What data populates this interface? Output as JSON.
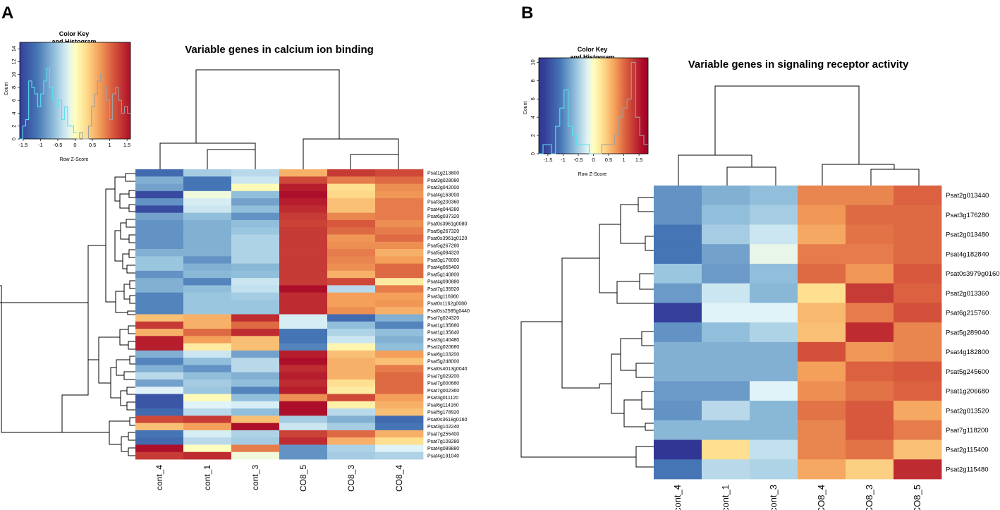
{
  "panels": [
    {
      "letter": "A",
      "title": "Variable genes in calcium ion binding",
      "color_key": {
        "title_line1": "Color Key",
        "title_line2": "and Histogram",
        "xlabel": "Row Z-Score",
        "ylabel": "Count",
        "x_ticks": [
          "-1.5",
          "-1",
          "-0.5",
          "0",
          "0.5",
          "1",
          "1.5"
        ],
        "y_ticks": [
          "0",
          "2",
          "4",
          "6",
          "8",
          "10",
          "12",
          "14"
        ],
        "xlim": [
          -1.6,
          1.6
        ],
        "ylim": [
          0,
          15
        ],
        "histogram": [
          0,
          2,
          3,
          9,
          8,
          7,
          5,
          7,
          9,
          11,
          8,
          6,
          5,
          6,
          3,
          5,
          2,
          2,
          1,
          0,
          1,
          0,
          0,
          2,
          5,
          7,
          9,
          10,
          8,
          6,
          3,
          7,
          8,
          6,
          4,
          5,
          4
        ]
      }
    },
    {
      "letter": "B",
      "title": "Variable genes in signaling receptor activity",
      "color_key": {
        "title_line1": "Color Key",
        "title_line2": "and Histogram",
        "xlabel": "Row Z-Score",
        "ylabel": "Count",
        "x_ticks": [
          "-1.5",
          "-1",
          "-0.5",
          "0",
          "0.5",
          "1",
          "1.5"
        ],
        "y_ticks": [
          "0",
          "2",
          "4",
          "6",
          "8",
          "10"
        ],
        "xlim": [
          -1.8,
          1.8
        ],
        "ylim": [
          0,
          10.5
        ],
        "histogram": [
          0,
          1,
          1,
          0,
          3,
          5,
          7,
          3,
          2,
          1,
          1,
          1,
          0,
          0,
          0,
          1,
          1,
          1,
          2,
          4,
          5,
          6,
          10,
          4,
          2,
          1
        ]
      }
    }
  ],
  "chart_data": [
    {
      "type": "heatmap",
      "title": "Variable genes in calcium ion binding",
      "scale": "Row Z-Score",
      "columns": [
        "cont_4",
        "cont_1",
        "cont_3",
        "CO8_5",
        "CO8_3",
        "CO8_4"
      ],
      "rows": [
        "Psat1g213800",
        "Psat3g028080",
        "Psat2g042000",
        "Psat4g163000",
        "Psat3g200360",
        "Psat4g044280",
        "Psat6g037320",
        "Psat0s3961g0080",
        "Psat5g267320",
        "Psat0s3961g0120",
        "Psat5g267280",
        "Psat5g084320",
        "Psat3g176000",
        "Psat4g065400",
        "Psat5g140800",
        "Psat4g090880",
        "Psat7g135920",
        "Psat3g116960",
        "Psat0s1162g0080",
        "Psat0ss2585g0440",
        "Psat7g024320",
        "Psat1g135680",
        "Psat1g135640",
        "Psat3g140480",
        "Psat2g020680",
        "Psat6g103200",
        "Psat5g248000",
        "Psat0s4013g0040",
        "Psat7g029200",
        "Psat7g000680",
        "Psat7g002360",
        "Psat3g011120",
        "Psat6g114160",
        "Psat5g178920",
        "Psat0s3618g0160",
        "Psat3g102240",
        "Psat7g255400",
        "Psat7g109280",
        "Psat4g089880",
        "Psat4g191040"
      ],
      "values": [
        [
          -1.2,
          -0.5,
          -0.4,
          0.6,
          1.3,
          1.2
        ],
        [
          -0.7,
          -1.1,
          -0.3,
          1.2,
          0.9,
          1.0
        ],
        [
          -0.8,
          -1.1,
          0.05,
          1.5,
          0.3,
          0.8
        ],
        [
          -1.5,
          -0.1,
          -0.6,
          1.6,
          0.35,
          0.75
        ],
        [
          -0.9,
          -0.25,
          -0.8,
          1.5,
          0.5,
          0.9
        ],
        [
          -1.5,
          -0.3,
          -0.6,
          1.4,
          0.5,
          0.9
        ],
        [
          -0.8,
          -0.6,
          -0.9,
          1.3,
          0.85,
          0.9
        ],
        [
          -0.9,
          -0.7,
          -0.6,
          1.25,
          1.1,
          0.8
        ],
        [
          -0.9,
          -0.7,
          -0.55,
          1.3,
          1.0,
          0.9
        ],
        [
          -0.9,
          -0.7,
          -0.45,
          1.3,
          0.75,
          1.0
        ],
        [
          -0.9,
          -0.7,
          -0.45,
          1.3,
          0.8,
          0.8
        ],
        [
          -0.7,
          -0.7,
          -0.45,
          1.3,
          0.9,
          0.6
        ],
        [
          -0.55,
          -0.9,
          -0.45,
          1.3,
          0.85,
          0.7
        ],
        [
          -0.55,
          -0.7,
          -0.65,
          1.3,
          0.8,
          1.0
        ],
        [
          -0.9,
          -0.65,
          -0.6,
          1.3,
          0.6,
          1.0
        ],
        [
          -0.7,
          -1.0,
          -0.3,
          1.3,
          1.2,
          0.2
        ],
        [
          -0.7,
          -0.6,
          -0.35,
          1.6,
          -0.4,
          0.9
        ],
        [
          -1.0,
          -0.55,
          -0.5,
          1.4,
          0.7,
          0.7
        ],
        [
          -1.0,
          -0.55,
          -0.55,
          1.4,
          0.7,
          0.75
        ],
        [
          -1.0,
          -0.55,
          -0.55,
          1.4,
          0.8,
          0.6
        ],
        [
          0.5,
          0.6,
          1.4,
          -0.25,
          -1.2,
          -0.7
        ],
        [
          1.3,
          0.6,
          1.0,
          -0.25,
          -0.6,
          -1.0
        ],
        [
          0.6,
          1.0,
          1.4,
          -1.1,
          -0.45,
          -0.6
        ],
        [
          1.5,
          0.7,
          0.5,
          -1.1,
          -0.3,
          -0.7
        ],
        [
          1.5,
          0.2,
          0.5,
          -1.0,
          0.1,
          -0.6
        ],
        [
          -0.7,
          -0.3,
          -0.8,
          1.5,
          0.5,
          0.7
        ],
        [
          -1.0,
          -0.6,
          -0.4,
          1.6,
          0.6,
          0.5
        ],
        [
          -0.7,
          -0.9,
          -0.4,
          1.4,
          0.6,
          0.9
        ],
        [
          -0.4,
          -0.6,
          -0.7,
          1.5,
          0.6,
          1.0
        ],
        [
          -0.8,
          -0.5,
          -0.6,
          1.4,
          0.3,
          1.0
        ],
        [
          -0.2,
          -0.55,
          -1.0,
          1.5,
          0.2,
          1.0
        ],
        [
          -1.4,
          0.05,
          -0.6,
          0.8,
          1.2,
          0.7
        ],
        [
          -1.4,
          -0.2,
          -0.25,
          1.6,
          0.15,
          0.6
        ],
        [
          -1.2,
          -0.4,
          -0.6,
          1.6,
          -0.4,
          0.5
        ],
        [
          1.2,
          1.3,
          0.5,
          -0.5,
          -0.7,
          -1.2
        ],
        [
          0.5,
          0.7,
          1.6,
          -0.3,
          -0.5,
          -1.1
        ],
        [
          -1.1,
          -0.25,
          -0.45,
          1.25,
          1.0,
          0.6
        ],
        [
          -1.2,
          -0.4,
          -0.5,
          1.4,
          0.6,
          0.3
        ],
        [
          1.6,
          0.0,
          0.9,
          -0.9,
          -0.45,
          -0.2
        ],
        [
          1.3,
          1.4,
          -0.1,
          -0.9,
          -0.5,
          -0.45
        ]
      ]
    },
    {
      "type": "heatmap",
      "title": "Variable genes in signaling receptor activity",
      "scale": "Row Z-Score",
      "columns": [
        "cont_4",
        "cont_1",
        "cont_3",
        "CO8_4",
        "CO8_3",
        "CO8_5"
      ],
      "rows": [
        "Psat2g013440",
        "Psat3g176280",
        "Psat2g013480",
        "Psat4g182840",
        "Psat0s3979g0160",
        "Psat2g013360",
        "Psat6g215760",
        "Psat5g289040",
        "Psat4g182800",
        "Psat5g245600",
        "Psat1g206680",
        "Psat2g013520",
        "Psat7g118200",
        "Psat2g115400",
        "Psat2g115480"
      ],
      "values": [
        [
          -0.9,
          -0.7,
          -0.6,
          0.85,
          0.85,
          1.05
        ],
        [
          -0.9,
          -0.6,
          -0.5,
          0.75,
          1.0,
          1.0
        ],
        [
          -1.1,
          -0.5,
          -0.3,
          0.65,
          0.95,
          1.0
        ],
        [
          -1.1,
          -0.8,
          -0.15,
          0.9,
          0.9,
          1.0
        ],
        [
          -0.55,
          -0.85,
          -0.6,
          1.0,
          0.75,
          1.1
        ],
        [
          -0.85,
          -0.3,
          -0.65,
          0.3,
          1.3,
          1.05
        ],
        [
          -1.6,
          -0.2,
          -0.2,
          0.55,
          0.9,
          1.15
        ],
        [
          -0.9,
          -0.6,
          -0.45,
          0.5,
          1.4,
          0.85
        ],
        [
          -0.7,
          -0.7,
          -0.7,
          1.15,
          0.75,
          0.85
        ],
        [
          -0.7,
          -0.7,
          -0.7,
          0.7,
          1.05,
          1.1
        ],
        [
          -0.85,
          -0.85,
          -0.2,
          0.8,
          0.95,
          1.05
        ],
        [
          -0.9,
          -0.4,
          -0.65,
          0.95,
          1.1,
          0.65
        ],
        [
          -0.65,
          -0.65,
          -0.65,
          0.85,
          1.1,
          0.9
        ],
        [
          -1.7,
          0.3,
          -0.35,
          0.85,
          0.95,
          0.5
        ],
        [
          -1.1,
          -0.4,
          -0.45,
          0.65,
          0.4,
          1.4
        ]
      ]
    }
  ]
}
